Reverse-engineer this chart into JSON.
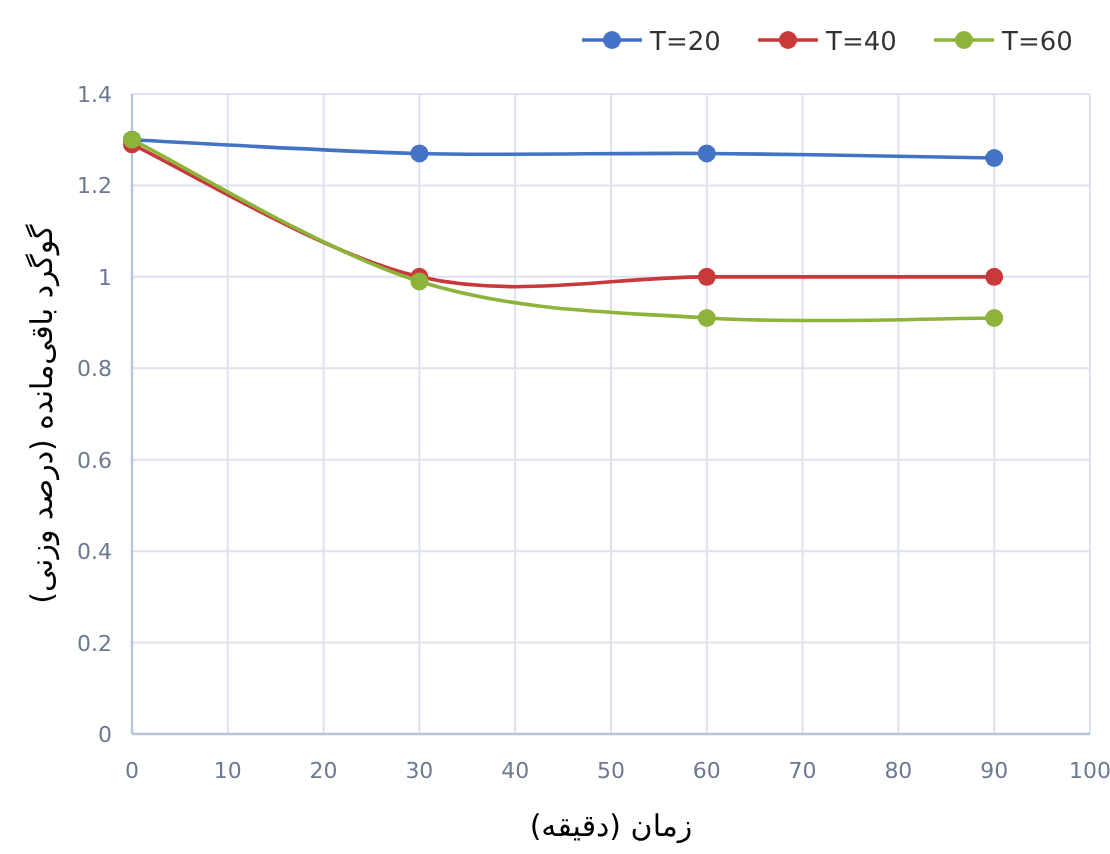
{
  "chart_data": {
    "type": "line",
    "xlabel": "زمان (دقیقه)",
    "ylabel": "گوگرد باقی‌مانده (درصد وزنی)",
    "x": [
      0,
      30,
      60,
      90
    ],
    "series": [
      {
        "name": "T=20",
        "color": "#4472c4",
        "values": [
          1.3,
          1.27,
          1.27,
          1.26
        ]
      },
      {
        "name": "T=40",
        "color": "#c9393b",
        "values": [
          1.29,
          1.0,
          1.0,
          1.0
        ]
      },
      {
        "name": "T=60",
        "color": "#8db33a",
        "values": [
          1.3,
          0.99,
          0.91,
          0.91
        ]
      }
    ],
    "xlim": [
      0,
      100
    ],
    "xticks": [
      0,
      10,
      20,
      30,
      40,
      50,
      60,
      70,
      80,
      90,
      100
    ],
    "ylim": [
      0,
      1.4
    ],
    "yticks": [
      0,
      0.2,
      0.4,
      0.6,
      0.8,
      1,
      1.2,
      1.4
    ],
    "grid": true,
    "legend": "top right",
    "marker": "circle",
    "line_style": "solid"
  }
}
